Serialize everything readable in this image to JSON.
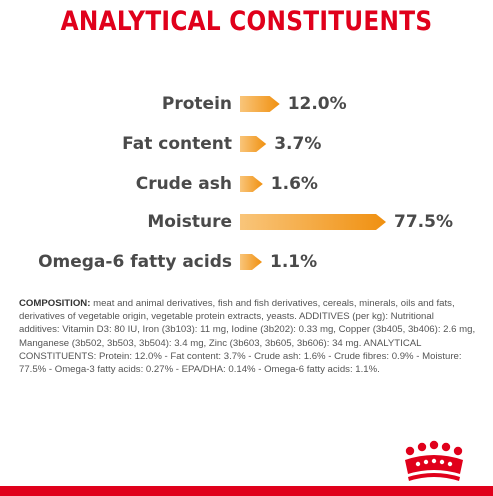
{
  "title": "ANALYTICAL CONSTITUENTS",
  "colors": {
    "brand_red": "#e0001b",
    "bar_light": "#f9c57a",
    "bar_dark": "#f09010",
    "label_gray": "#4a4a4a"
  },
  "chart_data": {
    "type": "bar",
    "orientation": "horizontal",
    "unit": "%",
    "title": "ANALYTICAL CONSTITUENTS",
    "categories": [
      "Protein",
      "Fat content",
      "Crude ash",
      "Moisture",
      "Omega-6 fatty acids"
    ],
    "values": [
      12.0,
      3.7,
      1.6,
      77.5,
      1.1
    ],
    "value_labels": [
      "12.0%",
      "3.7%",
      "1.6%",
      "77.5%",
      "1.1%"
    ]
  },
  "composition": {
    "heading": "COMPOSITION:",
    "text": "meat and animal derivatives, fish and fish derivatives, cereals, minerals, oils and fats, derivatives of vegetable origin, vegetable protein extracts, yeasts. ADDITIVES (per kg): Nutritional additives: Vitamin D3: 80 IU, Iron (3b103): 11 mg, Iodine (3b202): 0.33 mg, Copper (3b405, 3b406): 2.6 mg, Manganese (3b502, 3b503, 3b504): 3.4 mg, Zinc (3b603, 3b605, 3b606): 34 mg. ANALYTICAL CONSTITUENTS: Protein: 12.0% - Fat content: 3.7% - Crude ash: 1.6% - Crude fibres: 0.9% - Moisture: 77.5% - Omega-3 fatty acids: 0.27% - EPA/DHA: 0.14% - Omega-6 fatty acids: 1.1%."
  },
  "logo": {
    "icon": "royal-canin-crown-logo"
  }
}
